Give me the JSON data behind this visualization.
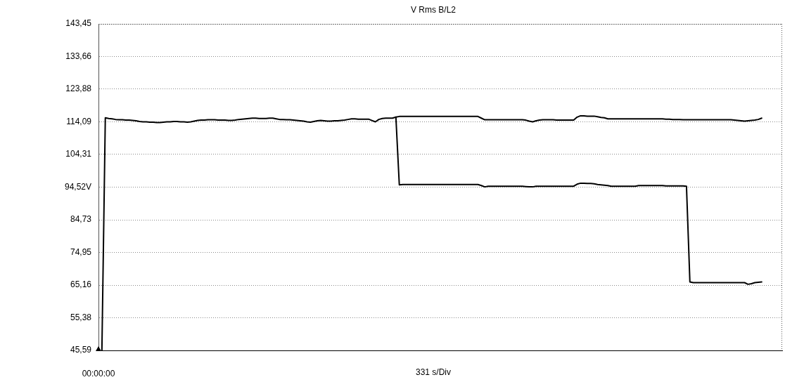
{
  "chart_data": {
    "type": "line",
    "title": "V Rms B/L2",
    "xlabel": "331 s/Div",
    "categories": [
      "00:00:00",
      null,
      null,
      null,
      null,
      null,
      null,
      null,
      null,
      null,
      null,
      null,
      null,
      null,
      null,
      null,
      null,
      null,
      null,
      null,
      null,
      null,
      null,
      null,
      null,
      null,
      null,
      null,
      null,
      null,
      null,
      null,
      null,
      null,
      null,
      null,
      null,
      null,
      null,
      null,
      null,
      null,
      null,
      null,
      null,
      null,
      null,
      null,
      null,
      null,
      null,
      null,
      null,
      null,
      null,
      null,
      null,
      null,
      null,
      null,
      null,
      null,
      null,
      null,
      null,
      null,
      null,
      null,
      null,
      null,
      null,
      null,
      null,
      null,
      null,
      null,
      null,
      null,
      null,
      null,
      null,
      null,
      null,
      null,
      null,
      null,
      null,
      null,
      null,
      null,
      null,
      null,
      null,
      null,
      null,
      null,
      null,
      null,
      null,
      null,
      null,
      null,
      null,
      null,
      null,
      null,
      null,
      null,
      null,
      null,
      null,
      null,
      null,
      null,
      null,
      null,
      null,
      null,
      null,
      null,
      null,
      null,
      null,
      null,
      null,
      null,
      null,
      null,
      null,
      null,
      null,
      null,
      null,
      null,
      null,
      null,
      null,
      null,
      null,
      null,
      null,
      null,
      null,
      null,
      null,
      null,
      null,
      null,
      null,
      null,
      null,
      null,
      null,
      null,
      null,
      null,
      null,
      null,
      null,
      null,
      null,
      null,
      null,
      null,
      null,
      null,
      null,
      null,
      null,
      null,
      null,
      null,
      null,
      null,
      null,
      null,
      null,
      null,
      null,
      null,
      null,
      null,
      null,
      null,
      null,
      null,
      null,
      null,
      null,
      null,
      null,
      null,
      null,
      null,
      null,
      null,
      null,
      null,
      null,
      null,
      null
    ],
    "ylim": [
      45.59,
      143.45
    ],
    "yticks": [
      {
        "value": 45.59,
        "label": "45,59"
      },
      {
        "value": 55.38,
        "label": "55,38"
      },
      {
        "value": 65.16,
        "label": "65,16"
      },
      {
        "value": 74.95,
        "label": "74,95"
      },
      {
        "value": 84.73,
        "label": "84,73"
      },
      {
        "value": 94.52,
        "label": "94,52V"
      },
      {
        "value": 104.31,
        "label": "104,31"
      },
      {
        "value": 114.09,
        "label": "114,09"
      },
      {
        "value": 123.88,
        "label": "123,88"
      },
      {
        "value": 133.66,
        "label": "133,66"
      },
      {
        "value": 143.45,
        "label": "143,45"
      }
    ],
    "series": [
      {
        "color": "#000000",
        "values": [
          null,
          45.6,
          115.3,
          115.1,
          115.0,
          114.8,
          114.7,
          114.7,
          114.6,
          114.6,
          114.5,
          114.4,
          114.2,
          114.1,
          114.1,
          114.0,
          114.0,
          113.9,
          113.9,
          114.0,
          114.1,
          114.1,
          114.2,
          114.2,
          114.1,
          114.1,
          114.0,
          114.1,
          114.3,
          114.5,
          114.6,
          114.6,
          114.7,
          114.7,
          114.7,
          114.6,
          114.6,
          114.6,
          114.5,
          114.5,
          114.6,
          114.8,
          114.9,
          115.0,
          115.1,
          115.2,
          115.2,
          115.1,
          115.1,
          115.1,
          115.2,
          115.2,
          115.0,
          114.8,
          114.8,
          114.7,
          114.7,
          114.6,
          114.5,
          114.4,
          114.3,
          114.1,
          114.0,
          114.2,
          114.4,
          114.5,
          114.4,
          114.3,
          114.3,
          114.4,
          114.4,
          114.5,
          114.6,
          114.8,
          115.0,
          115.0,
          114.9,
          114.9,
          114.9,
          114.9,
          114.5,
          114.1,
          114.8,
          115.1,
          115.2,
          115.2,
          115.2,
          115.5,
          115.7,
          115.7,
          115.7,
          115.7,
          115.7,
          115.7,
          115.7,
          115.7,
          115.7,
          115.7,
          115.7,
          115.7,
          115.7,
          115.7,
          115.7,
          115.7,
          115.7,
          115.7,
          115.7,
          115.7,
          115.7,
          115.7,
          115.7,
          115.7,
          115.2,
          114.7,
          114.7,
          114.7,
          114.7,
          114.7,
          114.7,
          114.7,
          114.7,
          114.7,
          114.7,
          114.7,
          114.7,
          114.6,
          114.3,
          114.1,
          114.4,
          114.6,
          114.7,
          114.7,
          114.7,
          114.7,
          114.6,
          114.6,
          114.6,
          114.6,
          114.6,
          114.6,
          115.5,
          115.9,
          115.9,
          115.8,
          115.8,
          115.8,
          115.6,
          115.4,
          115.3,
          115.0,
          115.0,
          115.0,
          115.0,
          115.0,
          115.0,
          115.0,
          115.0,
          115.0,
          115.0,
          115.0,
          115.0,
          115.0,
          115.0,
          115.0,
          115.0,
          115.0,
          114.9,
          114.9,
          114.8,
          114.8,
          114.8,
          114.7,
          114.7,
          114.7,
          114.7,
          114.7,
          114.7,
          114.7,
          114.7,
          114.7,
          114.7,
          114.7,
          114.7,
          114.7,
          114.7,
          114.7,
          114.6,
          114.5,
          114.4,
          114.3,
          114.4,
          114.5,
          114.6,
          114.8,
          115.2,
          null,
          null,
          null,
          null,
          null,
          null
        ]
      },
      {
        "color": "#000000",
        "values": [
          null,
          null,
          null,
          null,
          null,
          null,
          null,
          null,
          null,
          null,
          null,
          null,
          null,
          null,
          null,
          null,
          null,
          null,
          null,
          null,
          null,
          null,
          null,
          null,
          null,
          null,
          null,
          null,
          null,
          null,
          null,
          null,
          null,
          null,
          null,
          null,
          null,
          null,
          null,
          null,
          null,
          null,
          null,
          null,
          null,
          null,
          null,
          null,
          null,
          null,
          null,
          null,
          null,
          null,
          null,
          null,
          null,
          null,
          null,
          null,
          null,
          null,
          null,
          null,
          null,
          null,
          null,
          null,
          null,
          null,
          null,
          null,
          null,
          null,
          null,
          null,
          null,
          null,
          null,
          null,
          null,
          null,
          null,
          null,
          null,
          null,
          null,
          115.5,
          95.2,
          95.3,
          95.3,
          95.3,
          95.3,
          95.3,
          95.3,
          95.3,
          95.3,
          95.3,
          95.3,
          95.3,
          95.3,
          95.3,
          95.3,
          95.3,
          95.3,
          95.3,
          95.3,
          95.3,
          95.3,
          95.3,
          95.3,
          95.3,
          95.0,
          94.6,
          94.8,
          94.8,
          94.8,
          94.8,
          94.8,
          94.8,
          94.8,
          94.8,
          94.8,
          94.8,
          94.8,
          94.7,
          94.6,
          94.6,
          94.8,
          94.8,
          94.8,
          94.8,
          94.8,
          94.8,
          94.8,
          94.8,
          94.8,
          94.8,
          94.8,
          94.8,
          95.4,
          95.7,
          95.7,
          95.6,
          95.6,
          95.5,
          95.3,
          95.2,
          95.1,
          95.0,
          94.8,
          94.8,
          94.8,
          94.8,
          94.8,
          94.8,
          94.8,
          94.8,
          95.0,
          95.0,
          95.0,
          95.0,
          95.0,
          95.0,
          95.0,
          95.0,
          94.9,
          94.9,
          94.9,
          94.9,
          94.9,
          94.9,
          94.8,
          66.1,
          65.9,
          65.9,
          65.9,
          65.9,
          65.9,
          65.9,
          65.9,
          65.9,
          65.9,
          65.9,
          65.9,
          65.9,
          65.9,
          65.9,
          65.9,
          65.9,
          65.4,
          65.6,
          65.9,
          66.0,
          66.1,
          null,
          null,
          null,
          null,
          null,
          null
        ]
      }
    ],
    "grid": "y",
    "marker": "none",
    "line_style": "solid"
  }
}
